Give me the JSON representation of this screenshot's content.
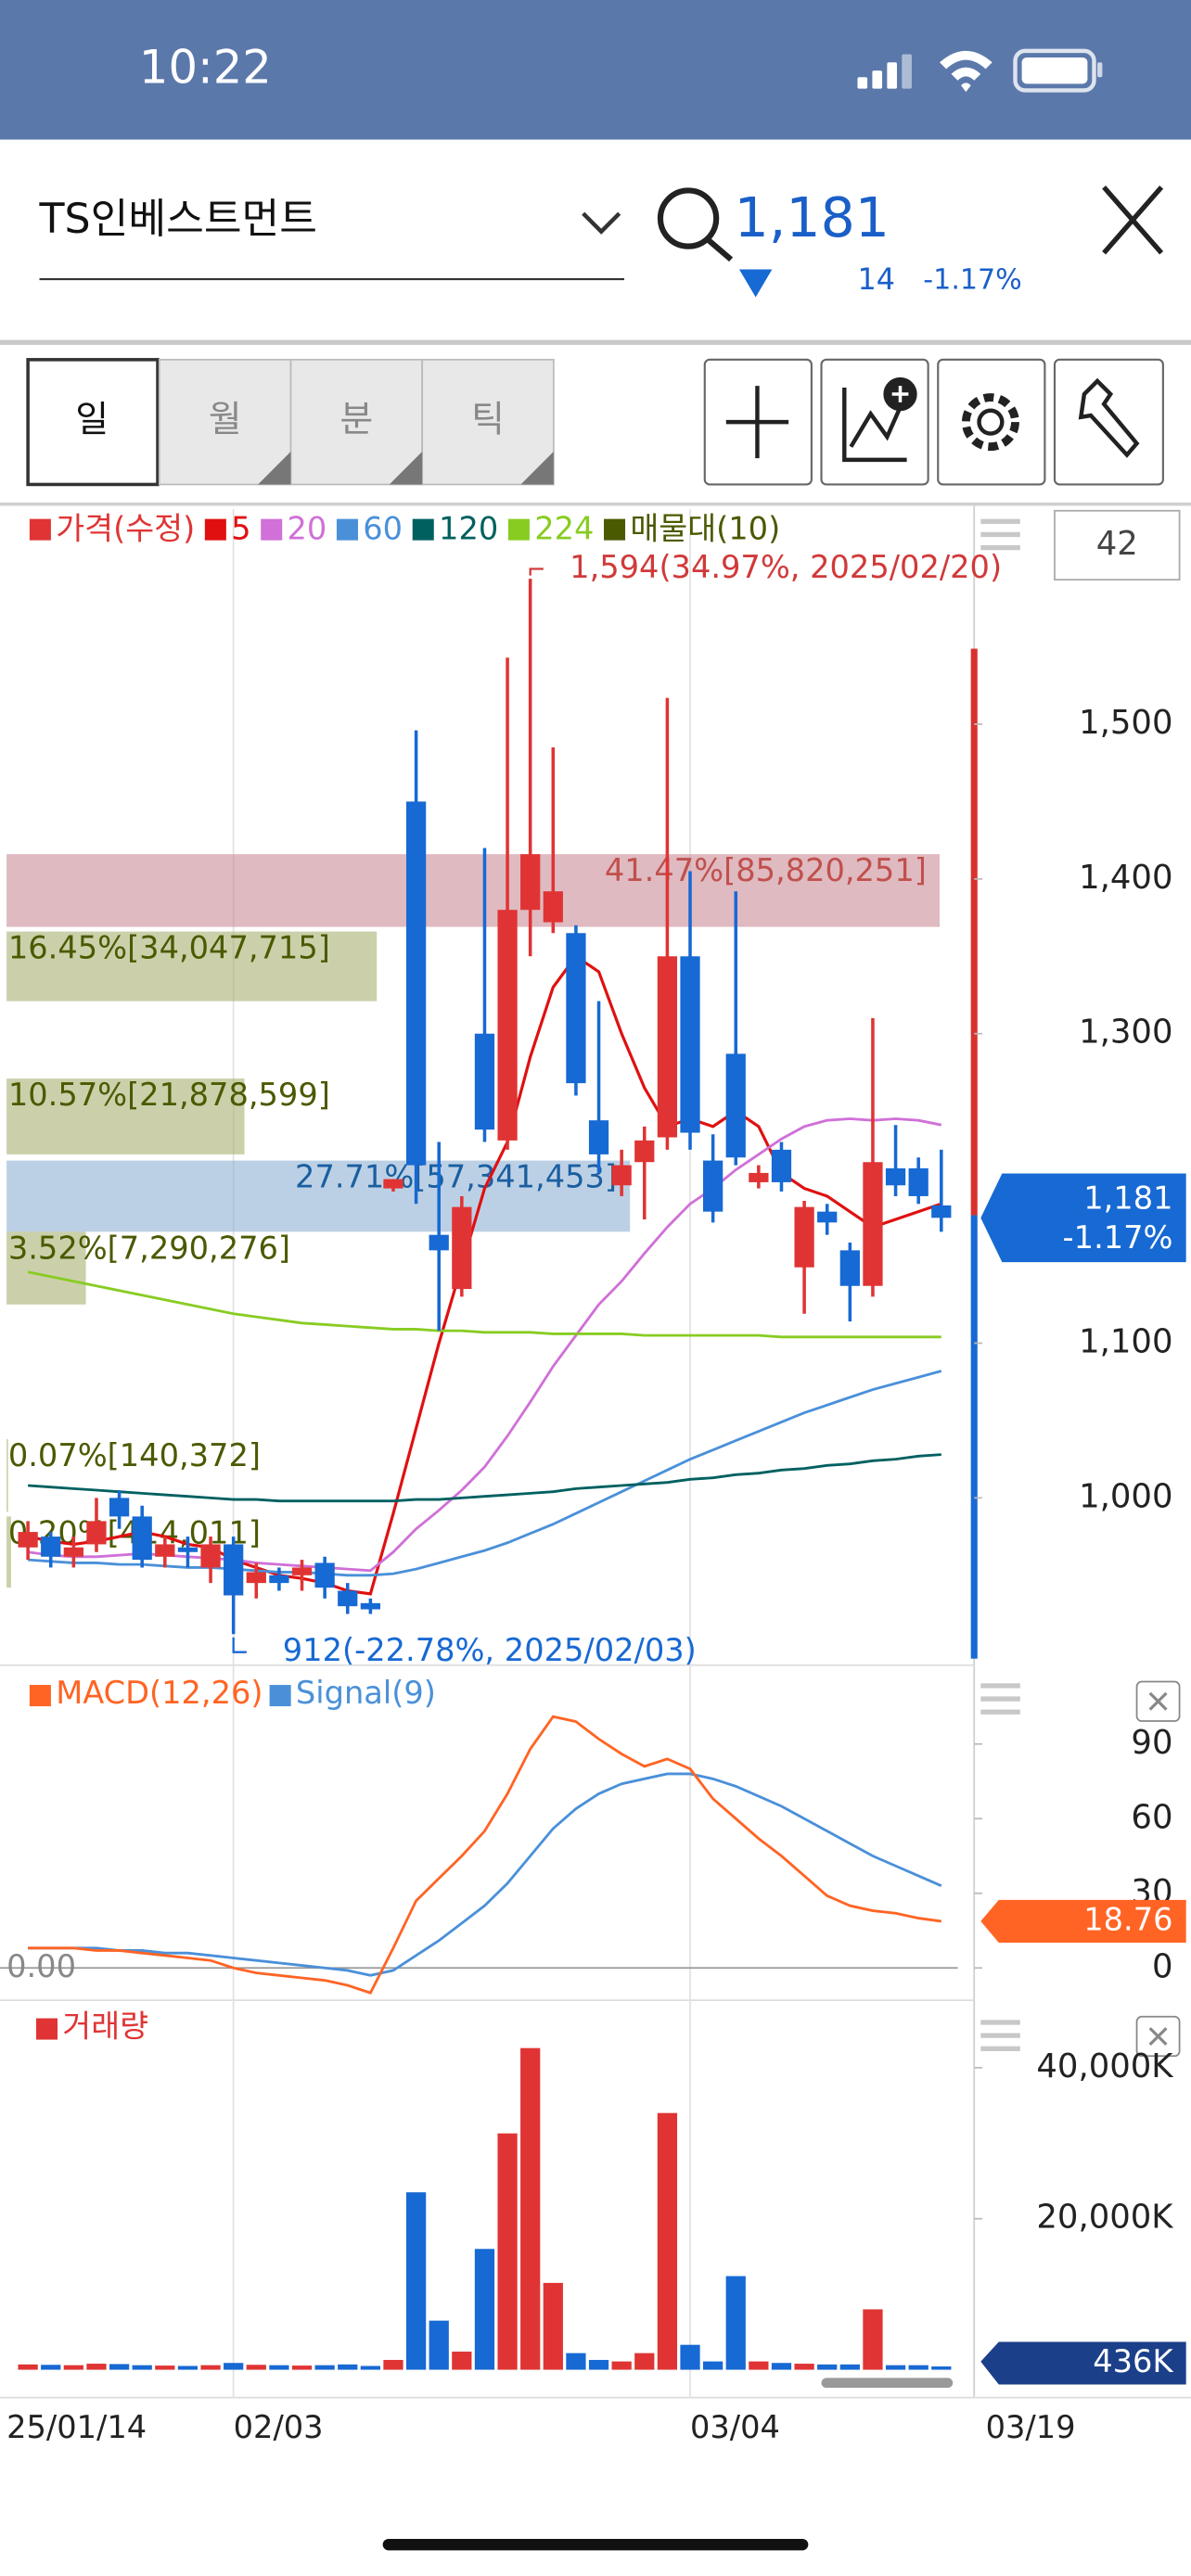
{
  "status_bar": {
    "time": "10:22"
  },
  "header": {
    "stock_name": "TS인베스트먼트",
    "price": "1,181",
    "change": "14",
    "change_pct": "-1.17%"
  },
  "tabs": [
    "일",
    "월",
    "분",
    "틱"
  ],
  "chart_count": "42",
  "x_axis_end_label": "03/19",
  "chart_data": [
    {
      "type": "candlestick",
      "name": "가격(수정)",
      "up_color": "#e03434",
      "down_color": "#1769d3",
      "categories": [
        "25/01/14",
        null,
        null,
        null,
        null,
        null,
        null,
        null,
        null,
        "02/03",
        null,
        null,
        null,
        null,
        null,
        null,
        null,
        null,
        null,
        null,
        null,
        null,
        null,
        null,
        null,
        null,
        null,
        null,
        null,
        "03/04",
        null,
        null,
        null,
        null,
        null,
        null,
        null,
        null,
        null,
        null,
        null
      ],
      "open": [
        968,
        975,
        962,
        970,
        1000,
        988,
        962,
        968,
        955,
        970,
        945,
        950,
        950,
        958,
        940,
        932,
        1200,
        1450,
        1170,
        1135,
        1300,
        1231,
        1380,
        1372,
        1365,
        1244,
        1202,
        1217,
        1233,
        1350,
        1218,
        1287,
        1204,
        1225,
        1149,
        1185,
        1160,
        1137,
        1213,
        1213,
        1189
      ],
      "high": [
        985,
        978,
        975,
        1000,
        1005,
        995,
        975,
        975,
        975,
        975,
        958,
        955,
        960,
        962,
        945,
        935,
        1206,
        1496,
        1230,
        1195,
        1420,
        1543,
        1594,
        1485,
        1370,
        1321,
        1225,
        1240,
        1517,
        1405,
        1235,
        1392,
        1215,
        1230,
        1192,
        1190,
        1165,
        1310,
        1241,
        1220,
        1225
      ],
      "low": [
        960,
        955,
        955,
        965,
        980,
        955,
        955,
        955,
        945,
        912,
        935,
        940,
        940,
        935,
        925,
        925,
        1198,
        1190,
        1108,
        1130,
        1230,
        1225,
        1350,
        1365,
        1260,
        1210,
        1195,
        1180,
        1225,
        1225,
        1178,
        1215,
        1200,
        1198,
        1119,
        1170,
        1114,
        1130,
        1195,
        1190,
        1172
      ],
      "close": [
        978,
        962,
        968,
        985,
        988,
        960,
        970,
        965,
        970,
        937,
        952,
        945,
        955,
        942,
        930,
        928,
        1206,
        1215,
        1160,
        1188,
        1238,
        1380,
        1416,
        1392,
        1268,
        1222,
        1215,
        1231,
        1350,
        1236,
        1185,
        1220,
        1210,
        1204,
        1188,
        1178,
        1137,
        1217,
        1202,
        1195,
        1181
      ],
      "series": [
        {
          "name": "5",
          "color": "#e01010",
          "values": [
            975,
            972,
            970,
            972,
            975,
            978,
            975,
            970,
            968,
            960,
            955,
            950,
            948,
            945,
            940,
            938,
            990,
            1045,
            1100,
            1150,
            1200,
            1230,
            1285,
            1330,
            1350,
            1340,
            1300,
            1265,
            1240,
            1245,
            1240,
            1250,
            1240,
            1210,
            1200,
            1195,
            1185,
            1175,
            1180,
            1185,
            1190
          ]
        },
        {
          "name": "20",
          "color": "#d070d8",
          "values": [
            965,
            963,
            962,
            962,
            963,
            964,
            963,
            962,
            961,
            960,
            958,
            957,
            956,
            955,
            954,
            953,
            965,
            980,
            992,
            1005,
            1020,
            1040,
            1062,
            1085,
            1105,
            1125,
            1140,
            1158,
            1175,
            1190,
            1200,
            1212,
            1222,
            1232,
            1240,
            1244,
            1245,
            1244,
            1245,
            1244,
            1241
          ]
        },
        {
          "name": "60",
          "color": "#4a90d9",
          "values": [
            960,
            959,
            958,
            958,
            957,
            957,
            956,
            955,
            955,
            954,
            953,
            952,
            952,
            951,
            950,
            950,
            951,
            954,
            958,
            962,
            966,
            971,
            977,
            983,
            990,
            997,
            1004,
            1011,
            1018,
            1025,
            1031,
            1037,
            1043,
            1049,
            1055,
            1060,
            1065,
            1070,
            1074,
            1078,
            1082
          ]
        },
        {
          "name": "120",
          "color": "#006060",
          "values": [
            1008,
            1007,
            1006,
            1005,
            1004,
            1003,
            1002,
            1001,
            1000,
            999,
            999,
            998,
            998,
            998,
            998,
            998,
            998,
            999,
            999,
            1000,
            1001,
            1002,
            1003,
            1004,
            1006,
            1007,
            1008,
            1009,
            1010,
            1012,
            1013,
            1015,
            1016,
            1018,
            1019,
            1021,
            1022,
            1024,
            1025,
            1027,
            1028
          ]
        },
        {
          "name": "224",
          "color": "#88cc22",
          "values": [
            1146,
            1143,
            1140,
            1137,
            1134,
            1131,
            1128,
            1125,
            1122,
            1119,
            1117,
            1115,
            1113,
            1112,
            1111,
            1110,
            1109,
            1109,
            1108,
            1108,
            1107,
            1107,
            1107,
            1106,
            1106,
            1106,
            1106,
            1105,
            1105,
            1105,
            1105,
            1105,
            1105,
            1104,
            1104,
            1104,
            1104,
            1104,
            1104,
            1104,
            1104
          ]
        }
      ],
      "volume_profile": {
        "name": "매물대(10)",
        "color": "#4a5a00",
        "colors": {
          "max": "#c98c96",
          "current": "#8fb0d4",
          "other": "#a9b071"
        },
        "bands": [
          {
            "low": 1369,
            "high": 1416,
            "volume": 85820251,
            "label": "41.47%[85,820,251]"
          },
          {
            "low": 1321,
            "high": 1366,
            "volume": 34047715,
            "label": "16.45%[34,047,715]"
          },
          {
            "low": 1222,
            "high": 1271,
            "volume": 21878599,
            "label": "10.57%[21,878,599]"
          },
          {
            "low": 1172,
            "high": 1218,
            "volume": 57341453,
            "label": "27.71%[57,341,453]"
          },
          {
            "low": 1125,
            "high": 1172,
            "volume": 7290276,
            "label": "3.52%[7,290,276]"
          },
          {
            "low": 991,
            "high": 1038,
            "volume": 140372,
            "label": "0.07%[140,372]"
          },
          {
            "low": 942,
            "high": 988,
            "volume": 414011,
            "label": "0.20%[414,011]"
          }
        ]
      },
      "annotations": [
        {
          "text": "1,594(34.97%, 2025/02/20)",
          "value": 1594,
          "color": "#d03a3a"
        },
        {
          "text": "912(-22.78%, 2025/02/03)",
          "value": 912,
          "color": "#1769d3"
        }
      ],
      "current": {
        "value": 1181,
        "label": "1,181",
        "change_label": "-1.17%",
        "color": "#1769d3"
      },
      "ylim": [
        894,
        1639
      ],
      "yticks": [
        {
          "value": 1000,
          "label": "1,000"
        },
        {
          "value": 1100,
          "label": "1,100"
        },
        {
          "value": 1300,
          "label": "1,300"
        },
        {
          "value": 1400,
          "label": "1,400"
        },
        {
          "value": 1500,
          "label": "1,500"
        }
      ]
    },
    {
      "type": "line",
      "series": [
        {
          "name": "MACD(12,26)",
          "color": "#ff6424",
          "values": [
            8,
            8,
            8,
            7,
            7,
            6,
            5,
            4,
            3,
            0,
            -2,
            -3,
            -4,
            -5,
            -7,
            -10,
            8,
            27,
            36,
            45,
            55,
            70,
            88,
            101,
            99,
            92,
            86,
            81,
            84,
            80,
            68,
            60,
            52,
            45,
            37,
            29,
            25,
            23,
            22,
            20,
            18.76
          ]
        },
        {
          "name": "Signal(9)",
          "color": "#4a90d9",
          "values": [
            8,
            8,
            8,
            8,
            7,
            7,
            6,
            6,
            5,
            4,
            3,
            2,
            1,
            0,
            -1,
            -3,
            -1,
            5,
            11,
            18,
            25,
            34,
            45,
            56,
            64,
            70,
            74,
            76,
            78,
            78,
            76,
            73,
            69,
            65,
            60,
            55,
            50,
            45,
            41,
            37,
            33
          ]
        }
      ],
      "baseline": {
        "value": 0,
        "label": "0.00"
      },
      "last_label": 18.76,
      "ylim": [
        -11,
        121
      ],
      "yticks": [
        0,
        30,
        60,
        90
      ]
    },
    {
      "type": "bar",
      "name": "거래량",
      "color": "#e03434",
      "values": [
        700,
        650,
        600,
        800,
        750,
        600,
        550,
        500,
        600,
        900,
        650,
        600,
        550,
        600,
        700,
        500,
        1300,
        23500,
        6500,
        2400,
        16000,
        31300,
        42600,
        11500,
        2200,
        1300,
        1100,
        2200,
        34000,
        3300,
        1100,
        12400,
        1100,
        900,
        800,
        700,
        700,
        8000,
        600,
        600,
        436
      ],
      "last_label": {
        "value": 436,
        "label": "436K"
      },
      "ylim": [
        0,
        48500
      ],
      "yticks": [
        {
          "value": 20000,
          "label": "20,000K"
        },
        {
          "value": 40000,
          "label": "40,000K"
        }
      ]
    }
  ]
}
